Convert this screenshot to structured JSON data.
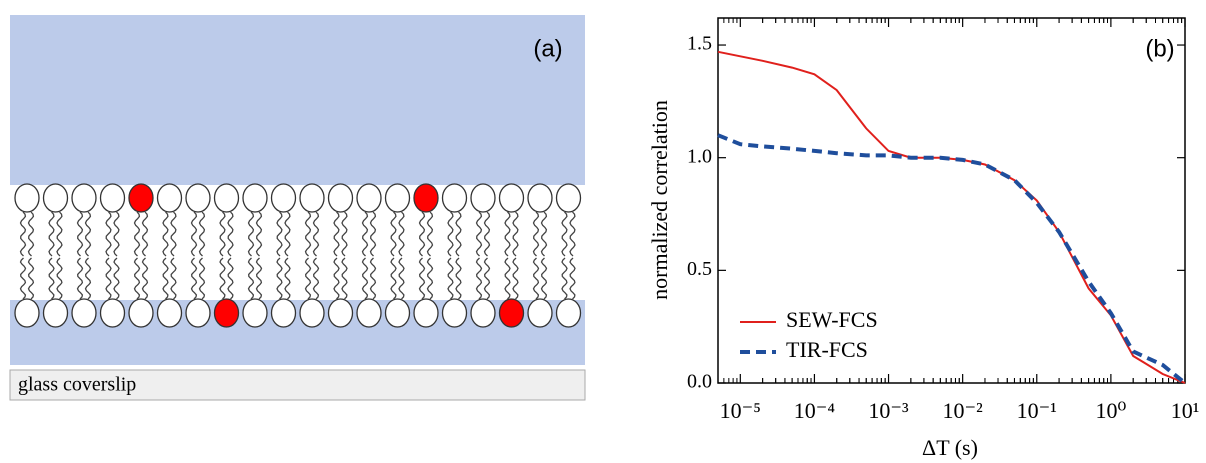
{
  "panel_a": {
    "label": "(a)",
    "substrate": "glass coverslip"
  },
  "chart_data": {
    "type": "line",
    "panel_label": "(b)",
    "x_label": "ΔT (s)",
    "y_label": "normalized correlation",
    "log_x": true,
    "x": [
      5e-06,
      1e-05,
      2e-05,
      5e-05,
      0.0001,
      0.0002,
      0.0005,
      0.001,
      0.002,
      0.005,
      0.01,
      0.02,
      0.05,
      0.1,
      0.2,
      0.5,
      1,
      2,
      5,
      10
    ],
    "series": [
      {
        "name": "SEW-FCS",
        "color": "#e0201c",
        "dash": false,
        "values": [
          1.47,
          1.45,
          1.43,
          1.4,
          1.37,
          1.3,
          1.13,
          1.03,
          1.0,
          1.0,
          0.99,
          0.97,
          0.9,
          0.81,
          0.67,
          0.42,
          0.3,
          0.12,
          0.04,
          0.0
        ]
      },
      {
        "name": "TIR-FCS",
        "color": "#1f4e9c",
        "dash": true,
        "values": [
          1.1,
          1.06,
          1.05,
          1.04,
          1.03,
          1.02,
          1.01,
          1.01,
          1.0,
          1.0,
          0.99,
          0.97,
          0.9,
          0.8,
          0.67,
          0.45,
          0.31,
          0.14,
          0.08,
          0.0
        ]
      }
    ],
    "xlim": [
      5e-06,
      10
    ],
    "ylim": [
      0,
      1.62
    ],
    "xticks": [
      {
        "value": 1e-05,
        "label": "10⁻⁵"
      },
      {
        "value": 0.0001,
        "label": "10⁻⁴"
      },
      {
        "value": 0.001,
        "label": "10⁻³"
      },
      {
        "value": 0.01,
        "label": "10⁻²"
      },
      {
        "value": 0.1,
        "label": "10⁻¹"
      },
      {
        "value": 1,
        "label": "10⁰"
      },
      {
        "value": 10,
        "label": "10¹"
      }
    ],
    "yticks": [
      {
        "value": 0,
        "label": "0.0"
      },
      0.5,
      {
        "value": 1,
        "label": "1.0"
      },
      1.5
    ],
    "legend": "lower-left"
  }
}
